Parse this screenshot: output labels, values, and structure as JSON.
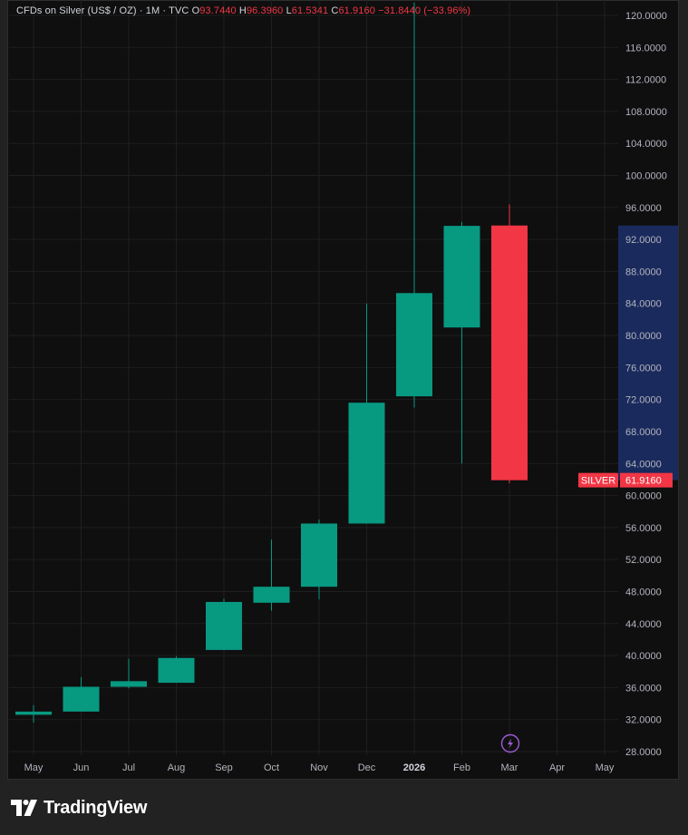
{
  "header": {
    "symbol": "CFDs on Silver (US$ / OZ)",
    "interval": "1M",
    "source": "TVC",
    "separator": "·",
    "open_label": "O",
    "open": "93.7440",
    "high_label": "H",
    "high": "96.3960",
    "low_label": "L",
    "low": "61.5341",
    "close_label": "C",
    "close": "61.9160",
    "change": "−31.8440 (−33.96%)"
  },
  "price_label": {
    "ticker": "SILVER",
    "value": "61.9160"
  },
  "brand": {
    "name": "TradingView"
  },
  "colors": {
    "up": "#089981",
    "down": "#f23645",
    "grid": "#1f1f1f",
    "axis_text": "#b2b5be",
    "highlight_band": "#1a2a5c",
    "background": "#0f0f0f"
  },
  "chart_data": {
    "type": "candlestick",
    "title": "CFDs on Silver (US$ / OZ)",
    "interval": "1M",
    "y_ticks": [
      "28.0000",
      "32.0000",
      "36.0000",
      "40.0000",
      "44.0000",
      "48.0000",
      "52.0000",
      "56.0000",
      "60.0000",
      "64.0000",
      "68.0000",
      "72.0000",
      "76.0000",
      "80.0000",
      "84.0000",
      "88.0000",
      "92.0000",
      "96.0000",
      "100.0000",
      "104.0000",
      "108.0000",
      "112.0000",
      "116.0000",
      "120.0000"
    ],
    "x_labels": [
      "May",
      "Jun",
      "Jul",
      "Aug",
      "Sep",
      "Oct",
      "Nov",
      "Dec",
      "2026",
      "Feb",
      "Mar",
      "Apr",
      "May"
    ],
    "ylim": [
      27,
      122
    ],
    "highlight_range": [
      61.916,
      93.744
    ],
    "candles": [
      {
        "month": "May",
        "open": 32.6,
        "high": 33.8,
        "low": 31.6,
        "close": 33.0
      },
      {
        "month": "Jun",
        "open": 33.0,
        "high": 37.3,
        "low": 33.0,
        "close": 36.1
      },
      {
        "month": "Jul",
        "open": 36.1,
        "high": 39.6,
        "low": 35.9,
        "close": 36.8
      },
      {
        "month": "Aug",
        "open": 36.6,
        "high": 39.9,
        "low": 36.6,
        "close": 39.7
      },
      {
        "month": "Sep",
        "open": 40.7,
        "high": 47.1,
        "low": 40.7,
        "close": 46.7
      },
      {
        "month": "Oct",
        "open": 46.6,
        "high": 54.5,
        "low": 45.6,
        "close": 48.6
      },
      {
        "month": "Nov",
        "open": 48.6,
        "high": 57.0,
        "low": 47.0,
        "close": 56.5
      },
      {
        "month": "Dec",
        "open": 56.5,
        "high": 84.0,
        "low": 56.5,
        "close": 71.6
      },
      {
        "month": "2026",
        "open": 72.4,
        "high": 121.6,
        "low": 71.0,
        "close": 85.3
      },
      {
        "month": "Feb",
        "open": 81.0,
        "high": 94.2,
        "low": 64.0,
        "close": 93.7
      },
      {
        "month": "Mar",
        "open": 93.744,
        "high": 96.396,
        "low": 61.5341,
        "close": 61.916
      }
    ]
  }
}
